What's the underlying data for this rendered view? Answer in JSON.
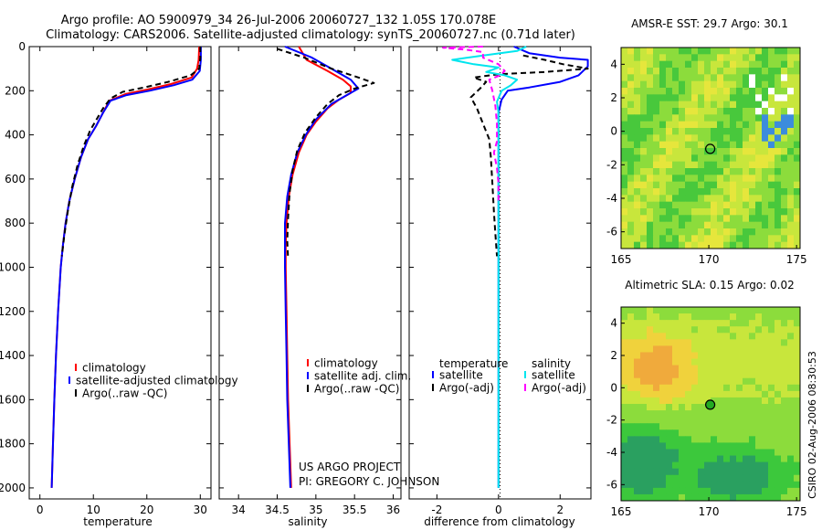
{
  "title": {
    "line1": "Argo profile: AO 5900979_34 26-Jul-2006 20060727_132 1.05S 170.078E",
    "line2": "Climatology: CARS2006. Satellite-adjusted climatology: synTS_20060727.nc (0.71d later)"
  },
  "side_label": "CSIRO 02-Aug-2006 08:30:53",
  "project_note": {
    "line1": "US ARGO PROJECT",
    "line2": "PI: GREGORY C. JOHNSON"
  },
  "colors": {
    "climatology": "#ff0000",
    "satellite": "#0000ff",
    "argo": "#000000",
    "salinity_sat": "#00e5ee",
    "salinity_argo": "#ff00ff"
  },
  "chart_data": [
    {
      "type": "line",
      "xlabel": "temperature",
      "ylabel": "",
      "xlim": [
        -2,
        32
      ],
      "ylim": [
        2050,
        0
      ],
      "xticks": [
        0,
        10,
        20,
        30
      ],
      "yticks": [
        0,
        200,
        400,
        600,
        800,
        1000,
        1200,
        1400,
        1600,
        1800,
        2000
      ],
      "legend": [
        "climatology",
        "satellite-adjusted climatology",
        "Argo(..raw -QC)"
      ],
      "series": [
        {
          "name": "climatology",
          "color": "#ff0000",
          "dash": "",
          "points": [
            [
              29.8,
              0
            ],
            [
              29.7,
              60
            ],
            [
              29.4,
              100
            ],
            [
              28.4,
              140
            ],
            [
              24.5,
              170
            ],
            [
              20,
              195
            ],
            [
              16,
              215
            ],
            [
              13,
              245
            ],
            [
              11.8,
              300
            ],
            [
              10.5,
              360
            ],
            [
              9,
              420
            ],
            [
              7.7,
              500
            ],
            [
              6.5,
              600
            ],
            [
              5.5,
              700
            ],
            [
              4.8,
              800
            ],
            [
              4.3,
              900
            ],
            [
              3.9,
              1000
            ],
            [
              3.4,
              1200
            ],
            [
              3.0,
              1400
            ],
            [
              2.7,
              1600
            ],
            [
              2.45,
              1800
            ],
            [
              2.2,
              2000
            ]
          ]
        },
        {
          "name": "satellite-adjusted climatology",
          "color": "#0000ff",
          "dash": "",
          "points": [
            [
              30.1,
              0
            ],
            [
              30.1,
              60
            ],
            [
              29.9,
              110
            ],
            [
              28.5,
              150
            ],
            [
              25,
              175
            ],
            [
              20.5,
              200
            ],
            [
              16.2,
              220
            ],
            [
              13.2,
              245
            ],
            [
              11.8,
              300
            ],
            [
              10.5,
              360
            ],
            [
              9,
              420
            ],
            [
              7.7,
              500
            ],
            [
              6.5,
              600
            ],
            [
              5.5,
              700
            ],
            [
              4.8,
              800
            ],
            [
              4.3,
              900
            ],
            [
              3.9,
              1000
            ],
            [
              3.4,
              1200
            ],
            [
              3.0,
              1400
            ],
            [
              2.7,
              1600
            ],
            [
              2.45,
              1800
            ],
            [
              2.2,
              2000
            ]
          ]
        },
        {
          "name": "Argo(..raw -QC)",
          "color": "#000000",
          "dash": "6,4",
          "points": [
            [
              30,
              0
            ],
            [
              30,
              50
            ],
            [
              29.8,
              100
            ],
            [
              28.2,
              130
            ],
            [
              24,
              160
            ],
            [
              19.5,
              185
            ],
            [
              15.5,
              205
            ],
            [
              13.2,
              235
            ],
            [
              11.8,
              280
            ],
            [
              10.6,
              330
            ],
            [
              9.4,
              380
            ],
            [
              8.2,
              450
            ],
            [
              7,
              540
            ],
            [
              6,
              640
            ],
            [
              5.2,
              750
            ],
            [
              4.6,
              850
            ],
            [
              4.1,
              950
            ]
          ]
        }
      ]
    },
    {
      "type": "line",
      "xlabel": "salinity",
      "xlim": [
        33.75,
        36.1
      ],
      "ylim": [
        2050,
        0
      ],
      "xticks": [
        34,
        34.5,
        35,
        35.5,
        36
      ],
      "legend": [
        "climatology",
        "satellite adj. clim.",
        "Argo(..raw -QC)"
      ],
      "series": [
        {
          "name": "climatology",
          "color": "#ff0000",
          "dash": "",
          "points": [
            [
              34.78,
              0
            ],
            [
              34.88,
              60
            ],
            [
              35.15,
              110
            ],
            [
              35.35,
              150
            ],
            [
              35.45,
              180
            ],
            [
              35.45,
              210
            ],
            [
              35.3,
              240
            ],
            [
              35.15,
              280
            ],
            [
              35.0,
              340
            ],
            [
              34.88,
              400
            ],
            [
              34.78,
              480
            ],
            [
              34.7,
              580
            ],
            [
              34.65,
              680
            ],
            [
              34.62,
              800
            ],
            [
              34.61,
              900
            ],
            [
              34.61,
              1000
            ],
            [
              34.62,
              1200
            ],
            [
              34.63,
              1400
            ],
            [
              34.64,
              1600
            ],
            [
              34.66,
              1800
            ],
            [
              34.68,
              2000
            ]
          ]
        },
        {
          "name": "satellite adj. clim.",
          "color": "#0000ff",
          "dash": "",
          "points": [
            [
              34.6,
              0
            ],
            [
              34.95,
              50
            ],
            [
              35.2,
              100
            ],
            [
              35.45,
              150
            ],
            [
              35.55,
              190
            ],
            [
              35.4,
              220
            ],
            [
              35.2,
              260
            ],
            [
              35.0,
              330
            ],
            [
              34.87,
              400
            ],
            [
              34.76,
              480
            ],
            [
              34.68,
              580
            ],
            [
              34.63,
              680
            ],
            [
              34.6,
              800
            ],
            [
              34.6,
              900
            ],
            [
              34.6,
              1000
            ],
            [
              34.61,
              1200
            ],
            [
              34.62,
              1400
            ],
            [
              34.63,
              1600
            ],
            [
              34.65,
              1800
            ],
            [
              34.67,
              2000
            ]
          ]
        },
        {
          "name": "Argo(..raw -QC)",
          "color": "#000000",
          "dash": "6,4",
          "points": [
            [
              34.5,
              10
            ],
            [
              34.85,
              50
            ],
            [
              35.2,
              100
            ],
            [
              35.55,
              140
            ],
            [
              35.75,
              165
            ],
            [
              35.5,
              190
            ],
            [
              35.3,
              220
            ],
            [
              35.15,
              260
            ],
            [
              35.0,
              320
            ],
            [
              34.86,
              390
            ],
            [
              34.76,
              470
            ],
            [
              34.7,
              560
            ],
            [
              34.66,
              660
            ],
            [
              34.64,
              780
            ],
            [
              34.63,
              880
            ],
            [
              34.64,
              960
            ]
          ]
        }
      ]
    },
    {
      "type": "line",
      "xlabel": "difference from climatology",
      "xlim": [
        -2.9,
        3.0
      ],
      "ylim": [
        2050,
        0
      ],
      "xticks": [
        -2,
        0,
        2
      ],
      "legend_groups": {
        "temperature": [
          "satellite",
          "Argo(-adj)"
        ],
        "salinity": [
          "satellite",
          "Argo(-adj)"
        ]
      },
      "series": [
        {
          "name": "temperature satellite",
          "color": "#0000ff",
          "dash": "",
          "points": [
            [
              0.5,
              0
            ],
            [
              1.0,
              30
            ],
            [
              2.0,
              50
            ],
            [
              2.9,
              60
            ],
            [
              2.9,
              90
            ],
            [
              2.6,
              130
            ],
            [
              2.0,
              160
            ],
            [
              1.0,
              185
            ],
            [
              0.3,
              200
            ],
            [
              0.1,
              240
            ],
            [
              0,
              300
            ],
            [
              0,
              400
            ],
            [
              0,
              600
            ],
            [
              0,
              800
            ],
            [
              0,
              1000
            ],
            [
              0,
              1200
            ],
            [
              0,
              1400
            ],
            [
              0,
              1600
            ],
            [
              0,
              1800
            ],
            [
              0,
              2000
            ]
          ]
        },
        {
          "name": "temperature Argo(-adj)",
          "color": "#000000",
          "dash": "6,4",
          "points": [
            [
              0.8,
              40
            ],
            [
              1.5,
              60
            ],
            [
              2.1,
              80
            ],
            [
              2.9,
              100
            ],
            [
              1.5,
              115
            ],
            [
              0,
              125
            ],
            [
              -0.8,
              140
            ],
            [
              -0.4,
              160
            ],
            [
              -0.6,
              190
            ],
            [
              -0.9,
              230
            ],
            [
              -0.7,
              280
            ],
            [
              -0.5,
              350
            ],
            [
              -0.3,
              420
            ],
            [
              -0.25,
              500
            ],
            [
              -0.2,
              620
            ],
            [
              -0.15,
              750
            ],
            [
              -0.1,
              850
            ],
            [
              -0.05,
              950
            ]
          ]
        },
        {
          "name": "salinity satellite",
          "color": "#00e5ee",
          "dash": "",
          "points": [
            [
              0.9,
              0
            ],
            [
              0.6,
              20
            ],
            [
              -0.5,
              40
            ],
            [
              -1.5,
              60
            ],
            [
              -0.8,
              80
            ],
            [
              0,
              95
            ],
            [
              -0.4,
              115
            ],
            [
              0.2,
              130
            ],
            [
              0.6,
              150
            ],
            [
              0.4,
              175
            ],
            [
              0.1,
              200
            ],
            [
              -0.05,
              250
            ],
            [
              0,
              300
            ],
            [
              0,
              500
            ],
            [
              0,
              700
            ],
            [
              0,
              1000
            ],
            [
              0,
              1400
            ],
            [
              0,
              1800
            ],
            [
              0,
              2000
            ]
          ]
        },
        {
          "name": "salinity Argo(-adj)",
          "color": "#ff00ff",
          "dash": "6,4",
          "points": [
            [
              -0.5,
              0
            ],
            [
              -1.8,
              5
            ],
            [
              -1.0,
              15
            ],
            [
              -0.5,
              25
            ],
            [
              -0.5,
              50
            ],
            [
              0,
              80
            ],
            [
              0.2,
              110
            ],
            [
              0.05,
              130
            ],
            [
              -0.3,
              150
            ],
            [
              -0.2,
              200
            ],
            [
              -0.1,
              270
            ],
            [
              -0.05,
              350
            ],
            [
              -0.05,
              430
            ],
            [
              -0.15,
              480
            ],
            [
              -0.05,
              550
            ],
            [
              0,
              620
            ],
            [
              0,
              700
            ]
          ]
        }
      ]
    },
    {
      "type": "heatmap",
      "title": "AMSR-E SST: 29.7 Argo: 30.1",
      "xlim": [
        165,
        175.2
      ],
      "ylim": [
        -7,
        5
      ],
      "xticks": [
        165,
        170,
        175
      ],
      "yticks": [
        -6,
        -4,
        -2,
        0,
        2,
        4
      ],
      "marker": {
        "lon": 170.078,
        "lat": -1.05,
        "fill": "none"
      },
      "colormap": [
        "#48c83c",
        "#8cdc3c",
        "#c8e63c",
        "#e6e63c",
        "#f0d250",
        "#3c8cdc"
      ]
    },
    {
      "type": "heatmap",
      "title": "Altimetric SLA: 0.15 Argo: 0.02",
      "xlim": [
        165,
        175.2
      ],
      "ylim": [
        -7,
        5
      ],
      "xticks": [
        165,
        170,
        175
      ],
      "yticks": [
        -6,
        -4,
        -2,
        0,
        2,
        4
      ],
      "marker": {
        "lon": 170.078,
        "lat": -1.05,
        "fill": "#22aa22"
      },
      "colormap": [
        "#2aa060",
        "#3cc83c",
        "#8cdc3c",
        "#c8e63c",
        "#f0d23c",
        "#f0aa3c"
      ]
    }
  ]
}
